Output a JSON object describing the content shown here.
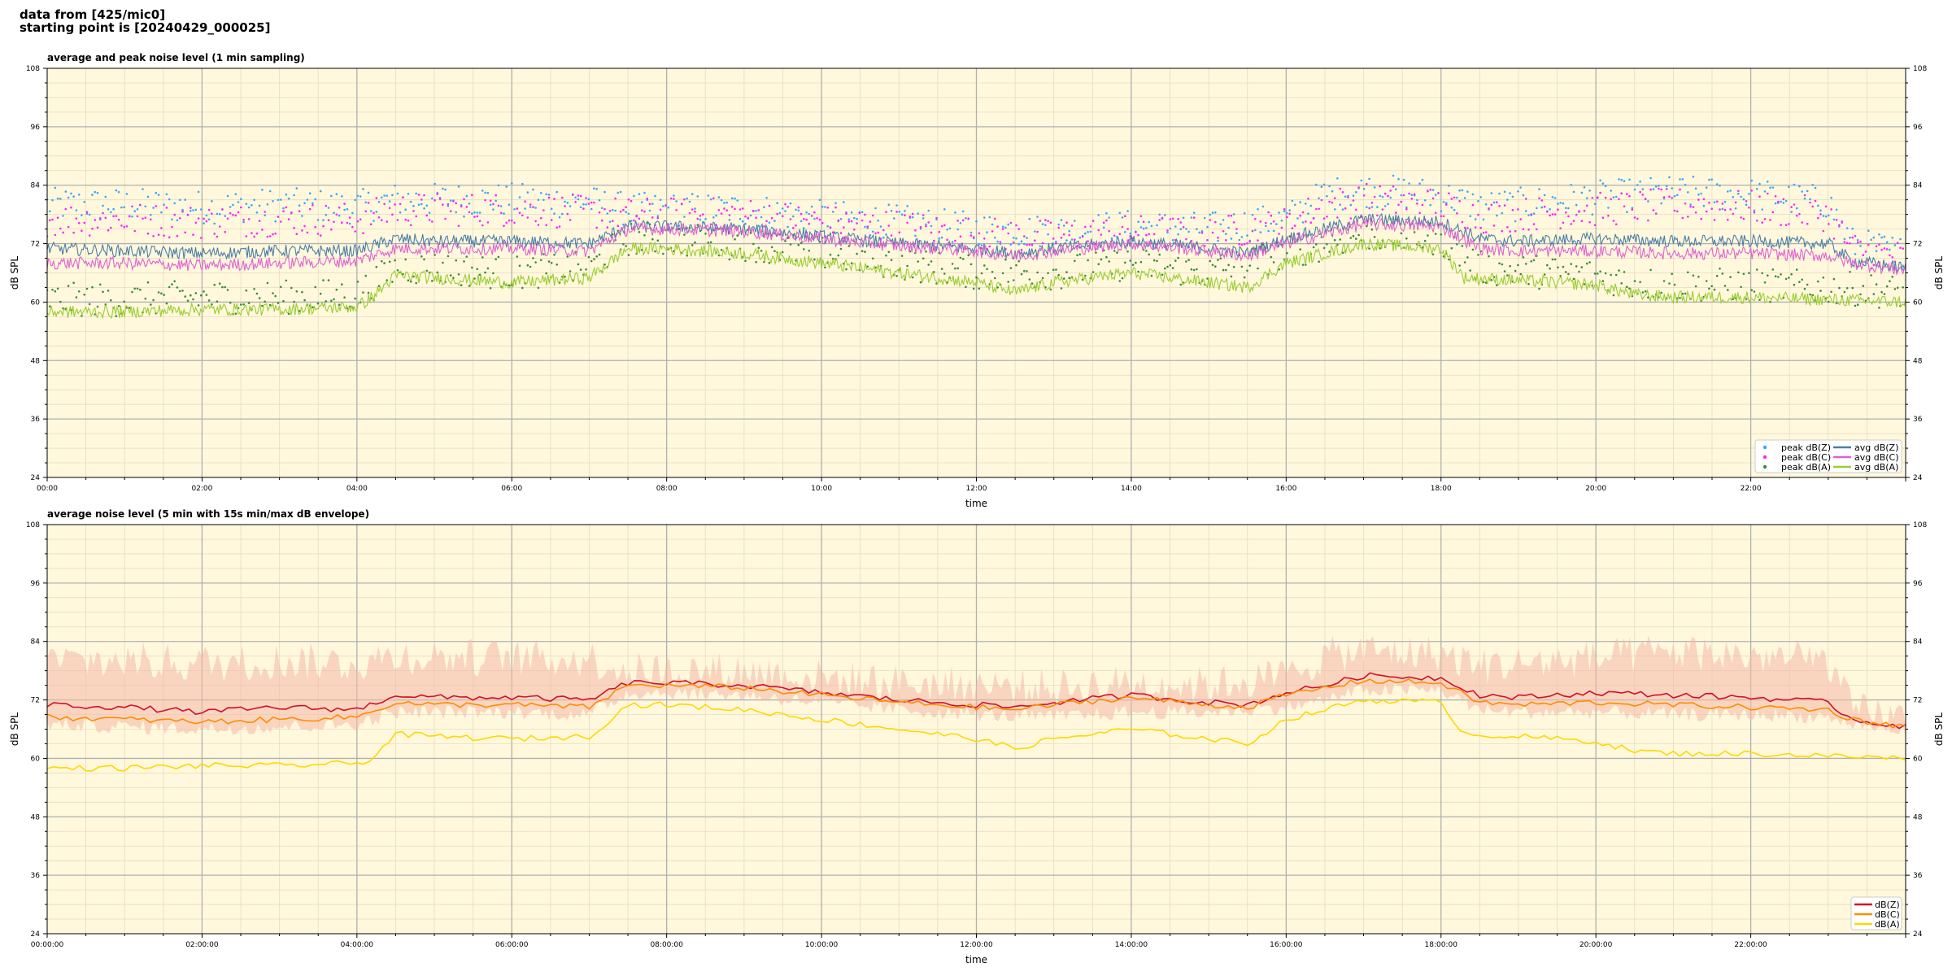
{
  "header": {
    "line1": "data from [425/mic0]",
    "line2": "starting point is [20240429_000025]"
  },
  "colors": {
    "plot_bg": "#fff8dc",
    "major_grid": "#b0b0b0",
    "minor_grid": "#e6dcc0",
    "peak_z": "#3aa6ff",
    "peak_c": "#ff22ff",
    "peak_a": "#3c8a3c",
    "avg_z": "#4a7ea8",
    "avg_c": "#e060d0",
    "avg_a": "#9acd32",
    "env_fill": "#f4b8a8",
    "dbz_5min": "#d0102a",
    "dbc_5min": "#ff8c00",
    "dba_5min": "#ffd700"
  },
  "chart_data": [
    {
      "type": "line",
      "title": "average and peak noise level (1 min sampling)",
      "xlabel": "time",
      "ylabel": "dB SPL",
      "ylabel_right": "dB SPL",
      "xlim_hours": [
        0,
        24
      ],
      "ylim": [
        24,
        108
      ],
      "xtick_labels": [
        "00:00",
        "02:00",
        "04:00",
        "06:00",
        "08:00",
        "10:00",
        "12:00",
        "14:00",
        "16:00",
        "18:00",
        "20:00",
        "22:00"
      ],
      "ytick_labels": [
        "24",
        "36",
        "48",
        "60",
        "72",
        "84",
        "96",
        "108"
      ],
      "grid": true,
      "legend_position": "lower-right",
      "legend": [
        "peak dB(Z)",
        "peak dB(C)",
        "peak dB(A)",
        "avg dB(Z)",
        "avg dB(C)",
        "avg dB(A)"
      ],
      "series": [
        {
          "name": "avg dB(Z)",
          "style": "line",
          "color_key": "avg_z",
          "x": [
            0,
            1,
            2,
            3,
            4,
            4.5,
            5,
            6,
            7,
            7.5,
            8,
            9,
            10,
            11,
            12,
            12.5,
            13,
            14,
            15,
            15.5,
            16,
            16.5,
            17,
            18,
            18.5,
            19,
            20,
            21,
            22,
            23,
            23.3,
            24
          ],
          "y": [
            71,
            70.5,
            70,
            70.5,
            70.5,
            73,
            72.5,
            72.5,
            72,
            75.5,
            75.5,
            75,
            73.5,
            72,
            71,
            70,
            71,
            72.5,
            71,
            70,
            73,
            75,
            77,
            76.5,
            73,
            72.5,
            73,
            72.5,
            72.5,
            72,
            68.5,
            67
          ]
        },
        {
          "name": "avg dB(C)",
          "style": "line",
          "color_key": "avg_c",
          "x": [
            0,
            1,
            2,
            3,
            4,
            4.5,
            5,
            6,
            7,
            7.5,
            8,
            9,
            10,
            11,
            12,
            12.5,
            13,
            14,
            15,
            15.5,
            16,
            16.5,
            17,
            18,
            18.5,
            19,
            20,
            21,
            22,
            23,
            23.3,
            24
          ],
          "y": [
            68,
            68,
            67.5,
            68,
            68.5,
            71,
            71,
            71,
            70.5,
            75,
            75,
            74.5,
            73,
            71.5,
            70.5,
            69.5,
            70.5,
            72,
            70.5,
            69.5,
            72,
            74,
            76,
            75.5,
            71,
            70.5,
            70.5,
            70,
            70,
            69.5,
            68,
            66.5
          ]
        },
        {
          "name": "avg dB(A)",
          "style": "line",
          "color_key": "avg_a",
          "x": [
            0,
            1,
            2,
            3,
            4,
            4.2,
            4.5,
            5,
            6,
            7,
            7.5,
            8,
            9,
            10,
            11,
            12,
            12.5,
            13,
            14,
            15,
            15.5,
            16,
            16.5,
            17,
            18,
            18.3,
            19,
            20,
            20.5,
            21,
            22,
            23,
            24
          ],
          "y": [
            58,
            58,
            58.5,
            58.5,
            59,
            61,
            65.5,
            65,
            64,
            65,
            71,
            71,
            70,
            68,
            66,
            64,
            62,
            64,
            66,
            64,
            63,
            68,
            70,
            72,
            71,
            65,
            64.5,
            63.5,
            61.5,
            61,
            61,
            60.5,
            60
          ]
        },
        {
          "name": "peak dB(Z)",
          "style": "points",
          "color_key": "peak_z",
          "x": [
            0,
            1,
            2,
            3,
            4,
            4.5,
            5,
            6,
            7,
            7.5,
            8,
            9,
            10,
            11,
            12,
            13,
            14,
            15,
            16,
            16.5,
            17,
            18,
            18.5,
            19,
            20,
            21,
            22,
            23,
            23.3,
            24
          ],
          "y": [
            80,
            80,
            79.5,
            80,
            79.5,
            81,
            81,
            81,
            80.5,
            79,
            79,
            79,
            77.5,
            76.5,
            75,
            74.5,
            75.5,
            75,
            77,
            82,
            83,
            82,
            79.5,
            80,
            81.5,
            82.5,
            82,
            80.5,
            72,
            70
          ]
        },
        {
          "name": "peak dB(C)",
          "style": "points",
          "color_key": "peak_c",
          "x": [
            0,
            1,
            2,
            3,
            4,
            4.5,
            5,
            6,
            7,
            7.5,
            8,
            9,
            10,
            11,
            12,
            13,
            14,
            15,
            16,
            16.5,
            17,
            18,
            18.5,
            19,
            20,
            21,
            22,
            23,
            23.3,
            24
          ],
          "y": [
            77,
            77,
            76.5,
            77,
            77,
            79,
            79,
            79,
            78.5,
            78,
            78,
            78,
            76.5,
            75.5,
            74,
            73.5,
            74.5,
            74,
            76,
            80,
            81,
            80,
            77.5,
            78,
            79,
            80,
            79.5,
            78,
            71,
            69
          ]
        },
        {
          "name": "peak dB(A)",
          "style": "points",
          "color_key": "peak_a",
          "x": [
            0,
            1,
            2,
            3,
            4,
            4.5,
            5,
            6,
            7,
            7.5,
            8,
            9,
            10,
            11,
            12,
            13,
            14,
            15,
            16,
            16.5,
            17,
            18,
            18.5,
            19,
            20,
            20.5,
            21,
            22,
            23,
            24
          ],
          "y": [
            60.5,
            60.5,
            61,
            61,
            61.5,
            67,
            67,
            66,
            67,
            73,
            73,
            72,
            70,
            68,
            66,
            66,
            68,
            66,
            70,
            72,
            74,
            73,
            67,
            66.5,
            65.5,
            64,
            63.5,
            63.5,
            63,
            62
          ]
        }
      ]
    },
    {
      "type": "line",
      "title": "average noise level (5 min with 15s min/max dB envelope)",
      "xlabel": "time",
      "ylabel": "dB SPL",
      "ylabel_right": "dB SPL",
      "xlim_hours": [
        0,
        24
      ],
      "ylim": [
        24,
        108
      ],
      "xtick_labels": [
        "00:00:00",
        "02:00:00",
        "04:00:00",
        "06:00:00",
        "08:00:00",
        "10:00:00",
        "12:00:00",
        "14:00:00",
        "16:00:00",
        "18:00:00",
        "20:00:00",
        "22:00:00"
      ],
      "ytick_labels": [
        "24",
        "36",
        "48",
        "60",
        "72",
        "84",
        "96",
        "108"
      ],
      "grid": true,
      "legend_position": "lower-right",
      "legend": [
        "dB(Z)",
        "dB(C)",
        "dB(A)"
      ],
      "series": [
        {
          "name": "dB(Z)",
          "style": "line",
          "color_key": "dbz_5min",
          "x": [
            0,
            1,
            2,
            3,
            4,
            4.5,
            5,
            6,
            7,
            7.5,
            8,
            9,
            10,
            11,
            12,
            12.5,
            13,
            14,
            15,
            15.5,
            16,
            16.5,
            17,
            18,
            18.5,
            19,
            20,
            21,
            22,
            23,
            23.3,
            24
          ],
          "y": [
            71,
            70.5,
            69.5,
            70.5,
            70,
            73,
            72.5,
            72.5,
            72,
            75.5,
            75.5,
            75,
            73.5,
            72,
            71,
            70.5,
            71.5,
            73,
            71.5,
            71,
            73.5,
            75,
            77,
            76.5,
            73,
            72.5,
            73.5,
            73,
            72.5,
            71.5,
            68,
            66.5
          ]
        },
        {
          "name": "dB(C)",
          "style": "line",
          "color_key": "dbc_5min",
          "x": [
            0,
            1,
            2,
            3,
            4,
            4.5,
            5,
            6,
            7,
            7.5,
            8,
            9,
            10,
            11,
            12,
            12.5,
            13,
            14,
            15,
            15.5,
            16,
            16.5,
            17,
            18,
            18.5,
            19,
            20,
            21,
            22,
            23,
            23.3,
            24
          ],
          "y": [
            68.5,
            68,
            67.5,
            68,
            68.5,
            71.5,
            71,
            71,
            70.5,
            75,
            75,
            74.5,
            73,
            71.5,
            70.5,
            70,
            71,
            72.5,
            71,
            70.5,
            73,
            74.5,
            76,
            75.5,
            71.5,
            71,
            71.5,
            71,
            70.5,
            70,
            68,
            66.5
          ]
        },
        {
          "name": "dB(A)",
          "style": "line",
          "color_key": "dba_5min",
          "x": [
            0,
            1,
            2,
            3,
            4,
            4.2,
            4.5,
            5,
            6,
            7,
            7.5,
            8,
            9,
            10,
            11,
            12,
            12.5,
            13,
            14,
            15,
            15.5,
            16,
            16.5,
            17,
            18,
            18.3,
            19,
            20,
            20.5,
            21,
            22,
            23,
            24
          ],
          "y": [
            58,
            58,
            58.5,
            58.5,
            59,
            60,
            65,
            64.5,
            64,
            64.5,
            71,
            71,
            70,
            68,
            66,
            64,
            62,
            64,
            66,
            64,
            63,
            68,
            70,
            72,
            71.5,
            65,
            64.5,
            63.5,
            61.5,
            61,
            61,
            60.5,
            60
          ]
        },
        {
          "name": "envelope max",
          "style": "band-top",
          "color_key": "env_fill",
          "x": [
            0,
            1,
            2,
            3,
            4,
            4.5,
            5,
            6,
            7,
            7.5,
            8,
            9,
            10,
            11,
            12,
            13,
            14,
            15,
            16,
            16.5,
            17,
            18,
            18.5,
            19,
            20,
            21,
            22,
            23,
            23.3,
            24
          ],
          "y": [
            80,
            80,
            79.5,
            80,
            79.5,
            81,
            81,
            80.5,
            80.5,
            78,
            78,
            78,
            76.5,
            75.5,
            75,
            74.5,
            75.5,
            75,
            77,
            81,
            82,
            81.5,
            79,
            79.5,
            80.5,
            82,
            81,
            80,
            70,
            68
          ]
        },
        {
          "name": "envelope min",
          "style": "band-bottom",
          "color_key": "env_fill",
          "x": [
            0,
            1,
            2,
            3,
            4,
            4.5,
            5,
            6,
            7,
            7.5,
            8,
            9,
            10,
            11,
            12,
            13,
            14,
            15,
            16,
            16.5,
            17,
            18,
            18.5,
            19,
            20,
            21,
            22,
            23,
            23.3,
            24
          ],
          "y": [
            67,
            66.5,
            66,
            66.5,
            67,
            69.5,
            69.5,
            69.5,
            69,
            73.5,
            73.5,
            73,
            71.5,
            70,
            69,
            68.5,
            69.5,
            69.5,
            70.5,
            72,
            74,
            74,
            70,
            69.5,
            69.5,
            69,
            69,
            68.5,
            67,
            65.5
          ]
        }
      ]
    }
  ]
}
